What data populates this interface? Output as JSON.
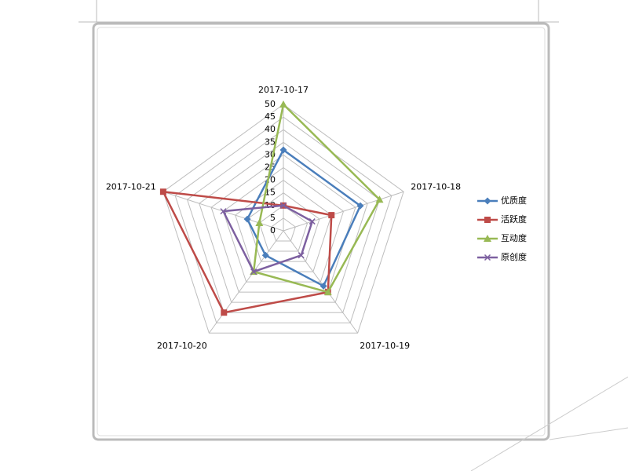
{
  "chart_data": {
    "type": "radar",
    "categories": [
      "2017-10-17",
      "2017-10-18",
      "2017-10-19",
      "2017-10-20",
      "2017-10-21"
    ],
    "ylim": [
      0,
      50
    ],
    "yticks": [
      0,
      5,
      10,
      15,
      20,
      25,
      30,
      35,
      40,
      45,
      50
    ],
    "grid": true,
    "legend": "right",
    "series": [
      {
        "name": "优质度",
        "color": "#4a7ebb",
        "marker": "diamond",
        "values": [
          32,
          32,
          27,
          12,
          15
        ]
      },
      {
        "name": "活跃度",
        "color": "#be4b48",
        "marker": "square",
        "values": [
          10,
          20,
          30,
          40,
          50
        ]
      },
      {
        "name": "互动度",
        "color": "#98b954",
        "marker": "triangle",
        "values": [
          50,
          40,
          30,
          20,
          10
        ]
      },
      {
        "name": "原创度",
        "color": "#7d60a0",
        "marker": "x",
        "values": [
          10,
          12,
          12,
          20,
          25
        ]
      }
    ]
  }
}
